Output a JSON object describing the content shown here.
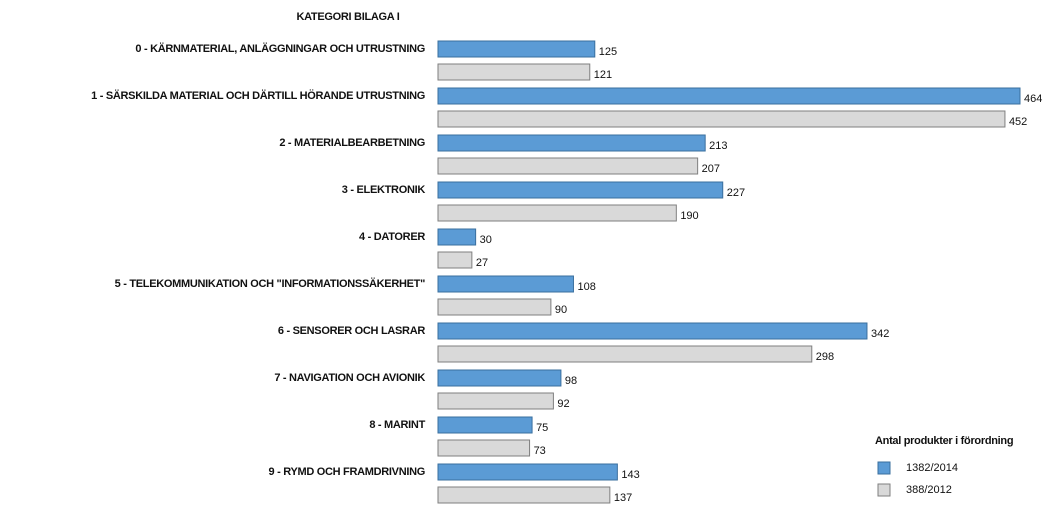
{
  "chart_data": {
    "type": "barh",
    "title": "KATEGORI BILAGA I",
    "categories": [
      "0 - KÄRNMATERIAL, ANLÄGGNINGAR OCH UTRUSTNING",
      "1 - SÄRSKILDA MATERIAL OCH DÄRTILL HÖRANDE UTRUSTNING",
      "2 - MATERIALBEARBETNING",
      "3 - ELEKTRONIK",
      "4 - DATORER",
      "5 - TELEKOMMUNIKATION OCH \"INFORMATIONSSÄKERHET\"",
      "6 - SENSORER OCH LASRAR",
      "7 - NAVIGATION OCH AVIONIK",
      "8 - MARINT",
      "9 - RYMD OCH FRAMDRIVNING"
    ],
    "series": [
      {
        "name": "1382/2014",
        "color": "#5b9bd5",
        "values": [
          125,
          464,
          213,
          227,
          30,
          108,
          342,
          98,
          75,
          143
        ]
      },
      {
        "name": "388/2012",
        "color": "#d9d9d9",
        "values": [
          121,
          452,
          207,
          190,
          27,
          90,
          298,
          92,
          73,
          137
        ]
      }
    ],
    "legend_title": "Antal produkter i förordning",
    "legend": "bottom-right"
  }
}
